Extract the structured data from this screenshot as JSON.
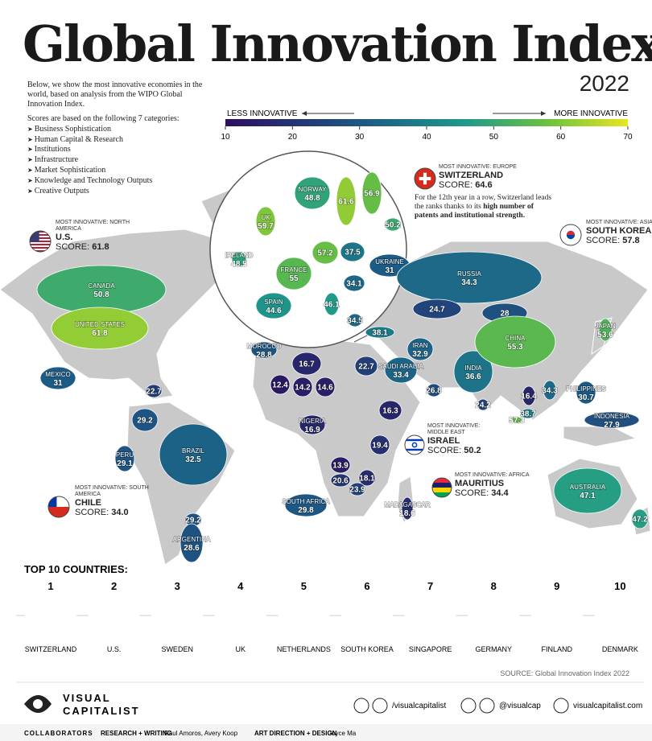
{
  "header": {
    "title": "Global Innovation Index",
    "year": "2022",
    "intro": "Below, we show the most innovative economies in the world, based on analysis from the WIPO Global Innovation Index.",
    "categories_intro": "Scores are based on the following 7 categories:",
    "categories": [
      "Business Sophistication",
      "Human Capital & Research",
      "Institutions",
      "Infrastructure",
      "Market Sophistication",
      "Knowledge and Technology Outputs",
      "Creative Outputs"
    ]
  },
  "legend": {
    "less": "LESS INNOVATIVE",
    "more": "MORE INNOVATIVE",
    "ticks": [
      10,
      20,
      30,
      40,
      50,
      60,
      70
    ]
  },
  "map": {
    "countries": [
      {
        "name": "NORWAY",
        "score": 48.8
      },
      {
        "score": 61.6
      },
      {
        "score": 56.9
      },
      {
        "score": 50.2
      },
      {
        "name": "UK",
        "score": 59.7
      },
      {
        "name": "IRELAND",
        "score": 48.5
      },
      {
        "score": 57.2
      },
      {
        "score": 37.5
      },
      {
        "name": "UKRAINE",
        "score": 31
      },
      {
        "name": "FRANCE",
        "score": 55
      },
      {
        "score": 34.1
      },
      {
        "name": "SPAIN",
        "score": 44.6
      },
      {
        "score": 46.1
      },
      {
        "score": 34.5
      },
      {
        "name": "RUSSIA",
        "score": 34.3
      },
      {
        "score": 24.7
      },
      {
        "score": 28
      },
      {
        "name": "CANADA",
        "score": 50.8
      },
      {
        "name": "UNITED STATES",
        "score": 61.8
      },
      {
        "name": "MEXICO",
        "score": 31
      },
      {
        "score": 22.7
      },
      {
        "name": "MOROCCO",
        "score": 28.8
      },
      {
        "score": 38.1
      },
      {
        "name": "IRAN",
        "score": 32.9
      },
      {
        "score": 22.7
      },
      {
        "name": "SAUDI ARABIA",
        "score": 33.4
      },
      {
        "score": 26.8
      },
      {
        "name": "INDIA",
        "score": 36.6
      },
      {
        "name": "CHINA",
        "score": 55.3
      },
      {
        "name": "JAPAN",
        "score": 53.6
      },
      {
        "score": 16.7
      },
      {
        "score": 12.4
      },
      {
        "score": 14.2
      },
      {
        "score": 14.6
      },
      {
        "name": "PHILIPPINES",
        "score": 30.7
      },
      {
        "score": 34.3
      },
      {
        "score": 16.4
      },
      {
        "score": 24.2
      },
      {
        "score": 16.3
      },
      {
        "score": 38.7
      },
      {
        "score": 57.3
      },
      {
        "name": "INDONESIA",
        "score": 27.9
      },
      {
        "score": 29.2
      },
      {
        "name": "NIGERIA",
        "score": 16.9
      },
      {
        "score": 19.4
      },
      {
        "name": "PERU",
        "score": 29.1
      },
      {
        "name": "BRAZIL",
        "score": 32.5
      },
      {
        "score": 13.9
      },
      {
        "score": 20.6
      },
      {
        "score": 18.1
      },
      {
        "score": 23.9
      },
      {
        "name": "AUSTRALIA",
        "score": 47.1
      },
      {
        "score": 47.2
      },
      {
        "name": "SOUTH AFRICA",
        "score": 29.8
      },
      {
        "name": "MADAGASCAR",
        "score": 18.6
      },
      {
        "score": 29.2
      },
      {
        "name": "ARGENTINA",
        "score": 28.6
      }
    ]
  },
  "callouts": [
    {
      "region": "MOST INNOVATIVE: EUROPE",
      "name": "SWITZERLAND",
      "score_label": "SCORE:",
      "score": 64.6,
      "note": "For the 12th year in a row, Switzerland leads the ranks thanks to its",
      "note_bold": "high number of patents and institutional strength."
    },
    {
      "region": "MOST INNOVATIVE: NORTH AMERICA",
      "name": "U.S.",
      "score_label": "SCORE:",
      "score": 61.8
    },
    {
      "region": "MOST INNOVATIVE: ASIA",
      "name": "SOUTH KOREA",
      "score_label": "SCORE:",
      "score": 57.8
    },
    {
      "region": "MOST INNOVATIVE: MIDDLE EAST",
      "name": "ISRAEL",
      "score_label": "SCORE:",
      "score": 50.2
    },
    {
      "region": "MOST INNOVATIVE: AFRICA",
      "name": "MAURITIUS",
      "score_label": "SCORE:",
      "score": 34.4
    },
    {
      "region": "MOST INNOVATIVE: SOUTH AMERICA",
      "name": "CHILE",
      "score_label": "SCORE:",
      "score": "34.0"
    }
  ],
  "top10": {
    "title": "TOP 10 COUNTRIES:",
    "items": [
      {
        "rank": 1,
        "name": "SWITZERLAND"
      },
      {
        "rank": 2,
        "name": "U.S."
      },
      {
        "rank": 3,
        "name": "SWEDEN"
      },
      {
        "rank": 4,
        "name": "UK"
      },
      {
        "rank": 5,
        "name": "NETHERLANDS"
      },
      {
        "rank": 6,
        "name": "SOUTH KOREA"
      },
      {
        "rank": 7,
        "name": "SINGAPORE"
      },
      {
        "rank": 8,
        "name": "GERMANY"
      },
      {
        "rank": 9,
        "name": "FINLAND"
      },
      {
        "rank": 10,
        "name": "DENMARK"
      }
    ]
  },
  "source": "SOURCE: Global Innovation Index 2022",
  "footer": {
    "logo_top": "VISUAL",
    "logo_bottom": "CAPITALIST",
    "links": [
      "/visualcapitalist",
      "@visualcap",
      "visualcapitalist.com"
    ],
    "collaborators": "COLLABORATORS",
    "research_label": "RESEARCH + WRITING",
    "research": "Raul Amoros, Avery Koop",
    "design_label": "ART DIRECTION + DESIGN",
    "design": "Joyce Ma"
  }
}
